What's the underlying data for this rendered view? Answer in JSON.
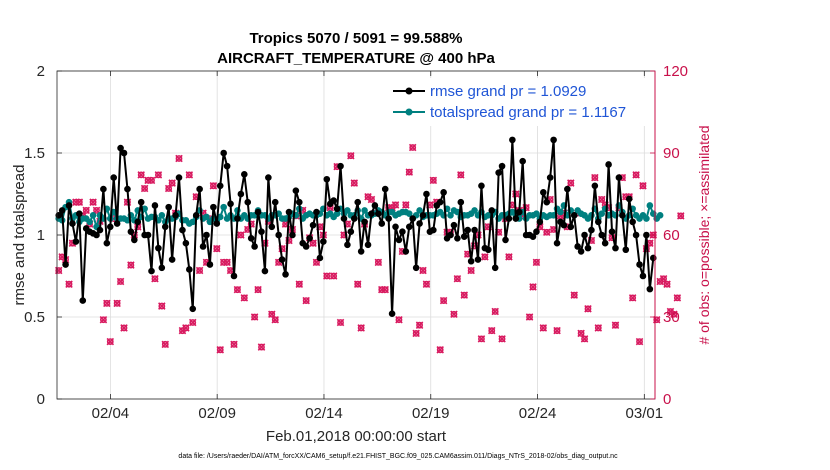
{
  "chart_data": {
    "type": "line",
    "title": "Tropics 5070 / 5091 = 99.588%",
    "subtitle": "AIRCRAFT_TEMPERATURE @ 400 hPa",
    "xlabel": "Feb.01,2018 00:00:00 start",
    "ylabel": "rmse and totalspread",
    "ylabel_right": "# of obs: o=possible; ×=assimilated",
    "footnote": "data file: /Users/raeder/DAI/ATM_forcXX/CAM6_setup/f.e21.FHIST_BGC.f09_025.CAM6assim.011/Diags_NTrS_2018-02/obs_diag_output.nc",
    "x_unit": "day offset from Feb.01,2018 00:00",
    "xlim": [
      0,
      28
    ],
    "ylim": [
      0,
      2
    ],
    "ylim_right": [
      0,
      120
    ],
    "x_ticks": [
      2.5,
      7.5,
      12.5,
      17.5,
      22.5,
      27.5
    ],
    "x_tick_labels": [
      "02/04",
      "02/09",
      "02/14",
      "02/19",
      "02/24",
      "03/01"
    ],
    "y_ticks": [
      0,
      0.5,
      1,
      1.5,
      2
    ],
    "y_tick_labels": [
      "0",
      "0.5",
      "1",
      "1.5",
      "2"
    ],
    "y_ticks_right": [
      0,
      30,
      60,
      90,
      120
    ],
    "y_tick_labels_right": [
      "0",
      "30",
      "60",
      "90",
      "120"
    ],
    "legend_position": "top-right",
    "colors": {
      "rmse": "#000000",
      "spread": "#008080",
      "obs": "#d81b60",
      "right_axis": "#c8104a",
      "legend_text": "#1f55d6"
    },
    "series": [
      {
        "name": "rmse grand pr = 1.0929",
        "axis": "left",
        "values": [
          1.12,
          1.15,
          0.82,
          1.18,
          1.07,
          0.96,
          1.13,
          0.6,
          1.04,
          1.02,
          1.01,
          1.0,
          1.03,
          1.28,
          0.95,
          1.05,
          1.35,
          1.07,
          1.53,
          1.5,
          1.28,
          1.02,
          0.97,
          1.08,
          1.2,
          1.0,
          1.0,
          0.78,
          1.18,
          0.92,
          0.8,
          1.05,
          1.17,
          0.85,
          1.12,
          1.35,
          1.03,
          0.95,
          0.79,
          0.55,
          1.12,
          1.28,
          0.93,
          1.0,
          0.82,
          1.17,
          1.07,
          1.3,
          1.5,
          1.42,
          1.19,
          0.75,
          1.1,
          1.25,
          1.37,
          1.2,
          0.98,
          0.93,
          1.14,
          1.02,
          0.78,
          1.35,
          1.05,
          1.2,
          1.0,
          0.85,
          0.76,
          1.14,
          1.0,
          1.27,
          1.2,
          0.95,
          0.93,
          0.98,
          1.06,
          1.14,
          0.86,
          0.96,
          1.34,
          1.19,
          1.21,
          1.16,
          1.42,
          1.1,
          0.94,
          1.02,
          1.1,
          1.2,
          0.9,
          1.08,
          0.94,
          1.13,
          1.18,
          1.13,
          1.07,
          1.28,
          1.1,
          0.52,
          1.05,
          0.97,
          1.02,
          0.9,
          1.05,
          1.1,
          0.8,
          1.07,
          1.12,
          1.25,
          1.02,
          1.03,
          1.18,
          1.2,
          1.26,
          0.98,
          1.0,
          1.06,
          0.98,
          1.2,
          0.99,
          1.03,
          0.84,
          1.03,
          0.85,
          1.3,
          0.92,
          0.91,
          1.15,
          0.8,
          1.38,
          1.42,
          0.97,
          1.1,
          1.58,
          1.1,
          1.14,
          1.45,
          1.0,
          1.0,
          0.99,
          1.02,
          1.08,
          1.26,
          1.2,
          1.35,
          1.58,
          0.95,
          1.08,
          1.06,
          1.28,
          1.05,
          1.12,
          0.93,
          0.9,
          1.0,
          0.92,
          1.03,
          1.3,
          1.08,
          1.0,
          0.95,
          1.43,
          1.02,
          0.92,
          1.35,
          1.12,
          0.91,
          1.22,
          1.08,
          1.0,
          0.82,
          0.75,
          1.0,
          0.67,
          0.86
        ]
      },
      {
        "name": "totalspread grand pr = 1.1167",
        "axis": "left",
        "values": [
          1.1,
          1.09,
          1.17,
          1.2,
          1.1,
          1.12,
          1.08,
          1.1,
          1.1,
          1.08,
          1.12,
          1.05,
          1.12,
          1.1,
          1.16,
          1.1,
          1.14,
          1.1,
          1.1,
          1.1,
          1.09,
          1.12,
          1.09,
          1.15,
          1.11,
          1.16,
          1.1,
          1.11,
          1.11,
          1.09,
          1.12,
          1.08,
          1.1,
          1.1,
          1.11,
          1.13,
          1.09,
          1.09,
          1.07,
          1.08,
          1.11,
          1.15,
          1.1,
          1.11,
          1.08,
          1.1,
          1.09,
          1.11,
          1.17,
          1.1,
          1.12,
          1.1,
          1.15,
          1.1,
          1.12,
          1.1,
          1.12,
          1.12,
          1.15,
          1.12,
          1.12,
          1.1,
          1.12,
          1.12,
          1.13,
          1.1,
          1.1,
          1.11,
          1.13,
          1.12,
          1.16,
          1.1,
          1.12,
          1.13,
          1.12,
          1.12,
          1.13,
          1.16,
          1.12,
          1.13,
          1.11,
          1.13,
          1.16,
          1.13,
          1.15,
          1.12,
          1.12,
          1.15,
          1.1,
          1.15,
          1.12,
          1.12,
          1.13,
          1.15,
          1.14,
          1.12,
          1.14,
          1.14,
          1.12,
          1.13,
          1.14,
          1.14,
          1.13,
          1.1,
          1.12,
          1.15,
          1.11,
          1.12,
          1.12,
          1.12,
          1.13,
          1.14,
          1.12,
          1.16,
          1.12,
          1.15,
          1.14,
          1.11,
          1.12,
          1.12,
          1.13,
          1.15,
          1.12,
          1.14,
          1.11,
          1.12,
          1.12,
          1.14,
          1.1,
          1.12,
          1.12,
          1.13,
          1.14,
          1.12,
          1.1,
          1.14,
          1.1,
          1.12,
          1.12,
          1.13,
          1.1,
          1.12,
          1.11,
          1.12,
          1.12,
          1.16,
          1.14,
          1.18,
          1.12,
          1.15,
          1.12,
          1.15,
          1.13,
          1.12,
          1.1,
          1.12,
          1.16,
          1.1,
          1.13,
          1.16,
          1.12,
          1.13,
          1.12,
          1.18,
          1.14,
          1.1,
          1.12,
          1.16,
          1.12,
          1.1,
          1.12,
          1.1,
          1.18,
          1.13,
          1.1,
          1.12
        ]
      },
      {
        "name": "observations possible (o) / assimilated (×)",
        "axis": "right",
        "values": [
          47,
          52,
          51,
          42,
          57,
          72,
          72,
          67,
          69,
          64,
          72,
          69,
          65,
          29,
          35,
          21,
          66,
          35,
          43,
          26,
          72,
          49,
          60,
          63,
          82,
          77,
          80,
          80,
          44,
          82,
          34,
          20,
          77,
          79,
          68,
          88,
          25,
          26,
          82,
          28,
          74,
          47,
          68,
          50,
          66,
          78,
          55,
          18,
          50,
          50,
          47,
          20,
          40,
          60,
          37,
          62,
          64,
          30,
          40,
          19,
          57,
          65,
          31,
          29,
          50,
          55,
          64,
          58,
          62,
          67,
          42,
          69,
          36,
          59,
          57,
          50,
          63,
          60,
          45,
          70,
          45,
          85,
          28,
          60,
          64,
          89,
          79,
          42,
          26,
          64,
          74,
          73,
          68,
          50,
          40,
          40,
          70,
          70,
          71,
          29,
          54,
          71,
          83,
          92,
          24,
          27,
          47,
          42,
          71,
          80,
          72,
          18,
          36,
          61,
          61,
          31,
          44,
          82,
          38,
          53,
          47,
          56,
          60,
          22,
          52,
          63,
          25,
          32,
          61,
          22,
          66,
          52,
          71,
          75,
          69,
          67,
          70,
          30,
          41,
          50,
          63,
          26,
          61,
          73,
          62,
          25,
          67,
          68,
          63,
          79,
          38,
          68,
          24,
          22,
          33,
          58,
          81,
          26,
          73,
          71,
          70,
          59,
          27,
          70,
          81,
          74,
          74,
          37,
          82,
          21,
          78,
          55,
          57,
          60,
          29,
          43,
          44,
          42,
          32,
          31,
          37,
          67
        ]
      }
    ]
  }
}
